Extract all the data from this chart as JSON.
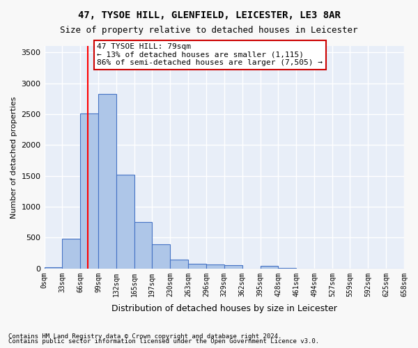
{
  "title1": "47, TYSOE HILL, GLENFIELD, LEICESTER, LE3 8AR",
  "title2": "Size of property relative to detached houses in Leicester",
  "xlabel": "Distribution of detached houses by size in Leicester",
  "ylabel": "Number of detached properties",
  "bar_color": "#aec6e8",
  "bar_edge_color": "#4472c4",
  "background_color": "#e8eef8",
  "grid_color": "#ffffff",
  "bin_edges": [
    0,
    33,
    66,
    99,
    132,
    165,
    197,
    230,
    263,
    296,
    329,
    362,
    395,
    428,
    461,
    494,
    527,
    559,
    592,
    625,
    658
  ],
  "bar_heights": [
    20,
    480,
    2510,
    2820,
    1515,
    750,
    390,
    145,
    75,
    60,
    55,
    0,
    45,
    10,
    0,
    0,
    0,
    0,
    0,
    0
  ],
  "tick_labels": [
    "0sqm",
    "33sqm",
    "66sqm",
    "99sqm",
    "132sqm",
    "165sqm",
    "197sqm",
    "230sqm",
    "263sqm",
    "296sqm",
    "329sqm",
    "362sqm",
    "395sqm",
    "428sqm",
    "461sqm",
    "494sqm",
    "527sqm",
    "559sqm",
    "592sqm",
    "625sqm",
    "658sqm"
  ],
  "ylim": [
    0,
    3600
  ],
  "yticks": [
    0,
    500,
    1000,
    1500,
    2000,
    2500,
    3000,
    3500
  ],
  "property_sqm": 79,
  "red_line_x": 79,
  "annotation_text": "47 TYSOE HILL: 79sqm\n← 13% of detached houses are smaller (1,115)\n86% of semi-detached houses are larger (7,505) →",
  "annotation_box_color": "#ffffff",
  "annotation_border_color": "#cc0000",
  "footer1": "Contains HM Land Registry data © Crown copyright and database right 2024.",
  "footer2": "Contains public sector information licensed under the Open Government Licence v3.0."
}
